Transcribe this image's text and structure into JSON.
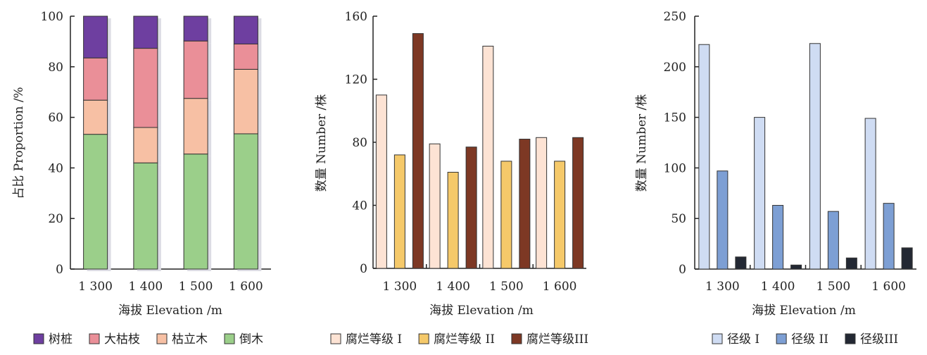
{
  "chart_data": [
    {
      "type": "bar",
      "stacked": true,
      "categories": [
        "1 300",
        "1 400",
        "1 500",
        "1 600"
      ],
      "xlabel": "海拔 Elevation /m",
      "ylabel": "占比 Proportion /%",
      "ylim": [
        0,
        100
      ],
      "yticks": [
        0,
        20,
        40,
        60,
        80,
        100
      ],
      "legend_position": "bottom",
      "series": [
        {
          "name": "倒木",
          "color": "#9bcf8a",
          "values": [
            53.3,
            42,
            45.5,
            53.5
          ]
        },
        {
          "name": "枯立木",
          "color": "#f7c0a4",
          "values": [
            13.5,
            14,
            22,
            25.5
          ]
        },
        {
          "name": "大枯枝",
          "color": "#ea8f98",
          "values": [
            16.7,
            31.3,
            22.7,
            10
          ]
        },
        {
          "name": "树桩",
          "color": "#6e3fa0",
          "values": [
            16.5,
            12.7,
            9.8,
            11
          ]
        }
      ],
      "legend_order": [
        "树桩",
        "大枯枝",
        "枯立木",
        "倒木"
      ]
    },
    {
      "type": "bar",
      "categories": [
        "1 300",
        "1 400",
        "1 500",
        "1 600"
      ],
      "xlabel": "海拔 Elevation /m",
      "ylabel": "数量 Number /株",
      "ylim": [
        0,
        160
      ],
      "yticks": [
        0,
        40,
        80,
        120,
        160
      ],
      "legend_position": "bottom",
      "series": [
        {
          "name": "腐烂等级 I",
          "color": "#fde3d4",
          "values": [
            110,
            79,
            141,
            83
          ]
        },
        {
          "name": "腐烂等级 II",
          "color": "#f5c96a",
          "values": [
            72,
            61,
            68,
            68
          ]
        },
        {
          "name": "腐烂等级III",
          "color": "#7d3824",
          "values": [
            149,
            77,
            82,
            83
          ]
        }
      ]
    },
    {
      "type": "bar",
      "categories": [
        "1 300",
        "1 400",
        "1 500",
        "1 600"
      ],
      "xlabel": "海拔 Elevation /m",
      "ylabel": "数量 Number /株",
      "ylim": [
        0,
        250
      ],
      "yticks": [
        0,
        50,
        100,
        150,
        200,
        250
      ],
      "legend_position": "bottom",
      "series": [
        {
          "name": "径级 I",
          "color": "#cfdcf3",
          "values": [
            222,
            150,
            223,
            149
          ]
        },
        {
          "name": "径级 II",
          "color": "#7d9fd4",
          "values": [
            97,
            63,
            57,
            65
          ]
        },
        {
          "name": "径级III",
          "color": "#232833",
          "values": [
            12,
            4,
            11,
            21
          ]
        }
      ]
    }
  ]
}
